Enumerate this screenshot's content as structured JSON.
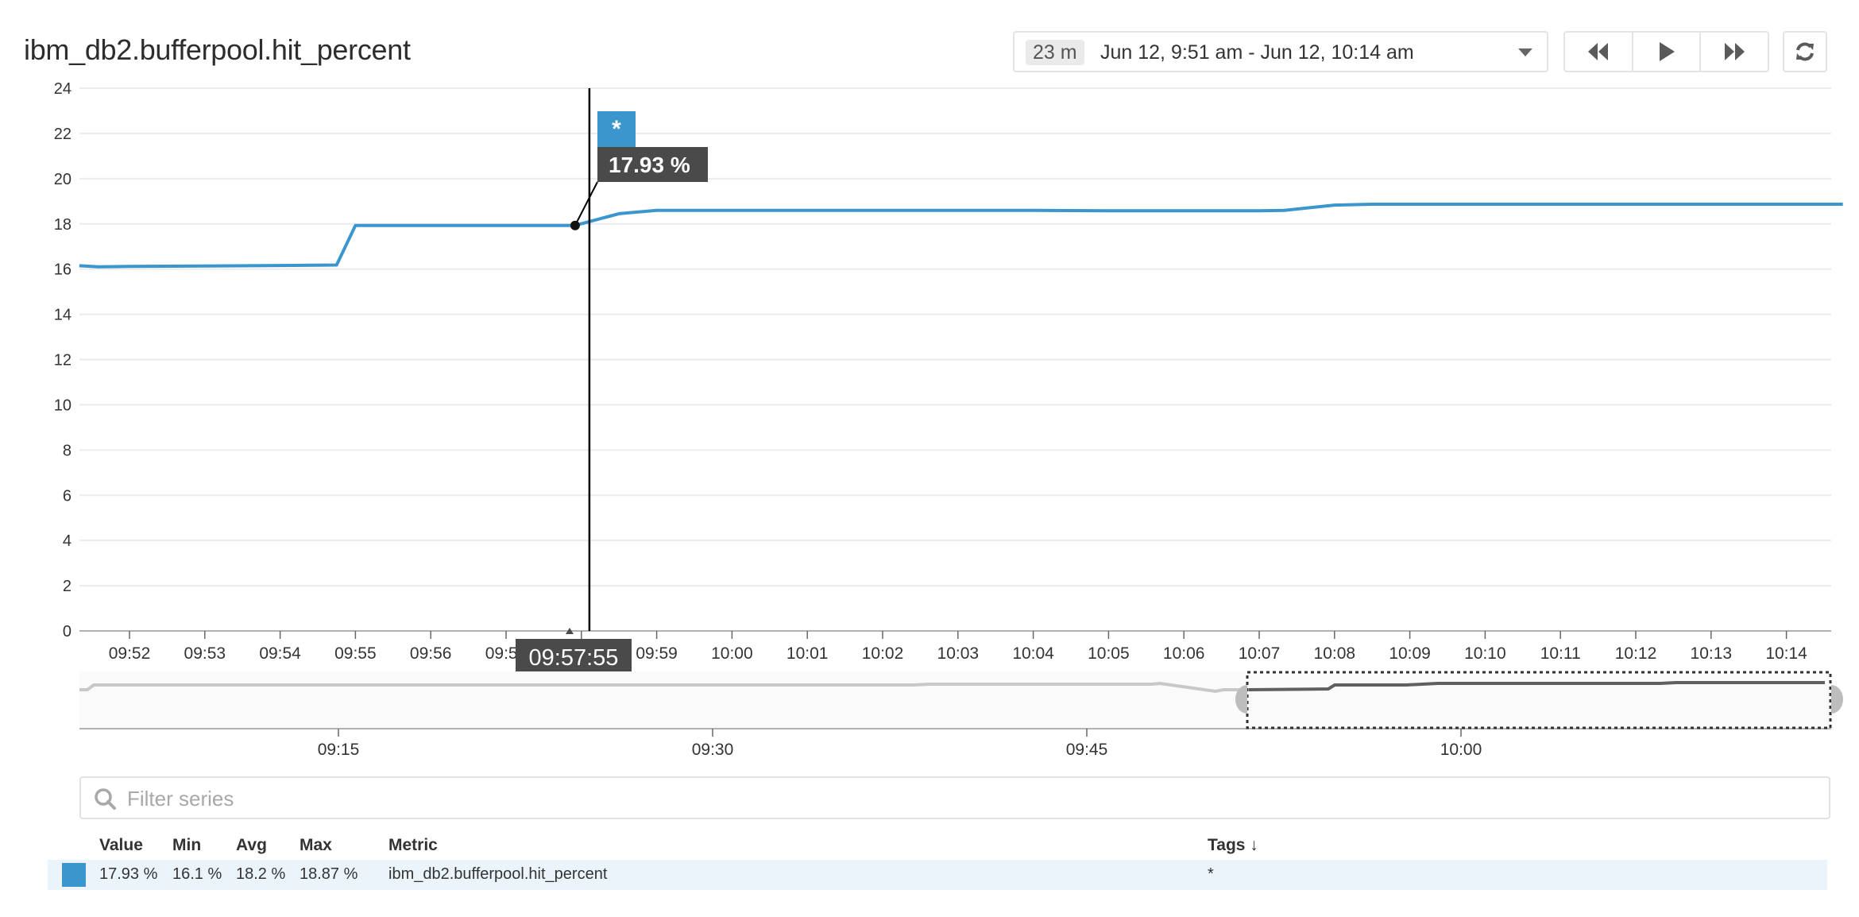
{
  "header": {
    "title": "ibm_db2.bufferpool.hit_percent"
  },
  "timepicker": {
    "duration_badge": "23 m",
    "range_label": "Jun 12, 9:51 am - Jun 12, 10:14 am",
    "caret_icon": "caret-down-icon"
  },
  "nav_buttons": [
    {
      "name": "rewind",
      "icon": "double-chevron-left-icon"
    },
    {
      "name": "play",
      "icon": "play-icon"
    },
    {
      "name": "fast-forward",
      "icon": "double-chevron-right-icon"
    }
  ],
  "refresh_icon": "refresh-icon",
  "tooltip": {
    "series_tag": "*",
    "value_label": "17.93 %",
    "time_label": "09:57:55"
  },
  "filter": {
    "placeholder": "Filter series",
    "value": ""
  },
  "legend": {
    "columns": {
      "value": "Value",
      "min": "Min",
      "avg": "Avg",
      "max": "Max",
      "metric": "Metric",
      "tags": "Tags ↓"
    },
    "rows": [
      {
        "color": "#3a96cc",
        "value": "17.93 %",
        "min": "16.1 %",
        "avg": "18.2 %",
        "max": "18.87 %",
        "metric": "ibm_db2.bufferpool.hit_percent",
        "tags": "*"
      }
    ]
  },
  "colors": {
    "series": "#3a96cc",
    "tooltip_bg": "#4a4a4a",
    "gridline": "#ebebeb",
    "navigator_line": "#c8c8c8",
    "navigator_selected_line": "#5f5f5f"
  },
  "chart_data": {
    "type": "line",
    "title": "ibm_db2.bufferpool.hit_percent",
    "xlabel": "",
    "ylabel": "",
    "ylim": [
      0,
      24
    ],
    "yticks": [
      0,
      2,
      4,
      6,
      8,
      10,
      12,
      14,
      16,
      18,
      20,
      22,
      24
    ],
    "xticks": [
      "09:52",
      "09:53",
      "09:54",
      "09:55",
      "09:56",
      "09:57",
      "09:58",
      "09:59",
      "10:00",
      "10:01",
      "10:02",
      "10:03",
      "10:04",
      "10:05",
      "10:06",
      "10:07",
      "10:08",
      "10:09",
      "10:10",
      "10:11",
      "10:12",
      "10:13",
      "10:14"
    ],
    "grid": true,
    "legend_position": "bottom",
    "series": [
      {
        "name": "ibm_db2.bufferpool.hit_percent {*}",
        "x": [
          "09:51:20",
          "09:51:35",
          "09:52:00",
          "09:53:00",
          "09:54:00",
          "09:54:45",
          "09:55:00",
          "09:56:00",
          "09:57:00",
          "09:57:55",
          "09:58:30",
          "09:59:00",
          "10:00:00",
          "10:01:00",
          "10:02:00",
          "10:03:00",
          "10:04:00",
          "10:05:00",
          "10:06:00",
          "10:07:00",
          "10:07:20",
          "10:08:00",
          "10:08:30",
          "10:09:00",
          "10:10:00",
          "10:11:00",
          "10:12:00",
          "10:13:00",
          "10:14:00",
          "10:14:45"
        ],
        "values": [
          16.15,
          16.1,
          16.12,
          16.14,
          16.16,
          16.18,
          17.93,
          17.93,
          17.93,
          17.93,
          18.45,
          18.6,
          18.6,
          18.6,
          18.6,
          18.6,
          18.6,
          18.58,
          18.58,
          18.58,
          18.6,
          18.83,
          18.87,
          18.87,
          18.87,
          18.87,
          18.87,
          18.87,
          18.87,
          18.87
        ]
      }
    ],
    "crosshair": {
      "time": "09:57:55",
      "value": 17.93,
      "label": "17.93 %"
    },
    "navigator": {
      "xticks": [
        "09:15",
        "09:30",
        "09:45",
        "10:00"
      ],
      "selected_range": [
        "09:51",
        "10:14"
      ]
    }
  }
}
